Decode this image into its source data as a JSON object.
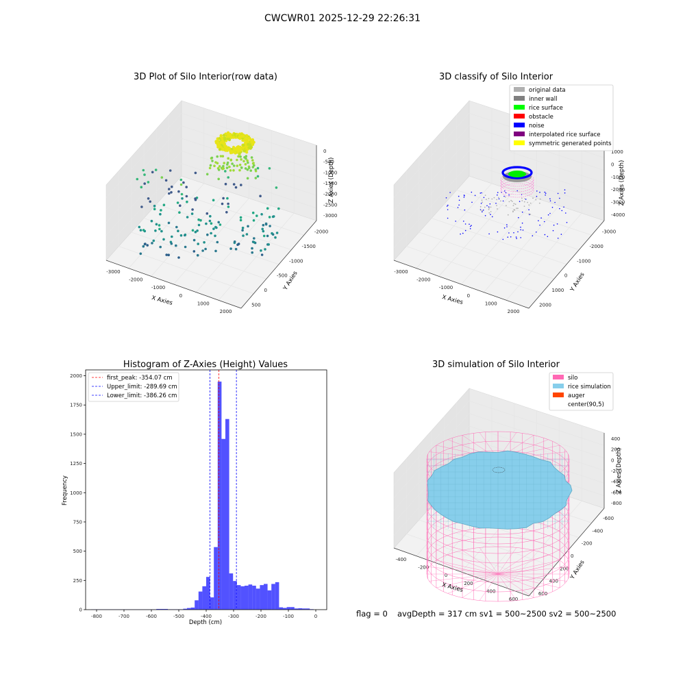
{
  "suptitle": "CWCWR01 2025-12-29 22:26:31",
  "footer": {
    "flag": "flag = 0",
    "avg": "avgDepth = 317 cm  sv1 = 500~2500  sv2 = 500~2500"
  },
  "chart_data": [
    {
      "type": "scatter",
      "title": "3D Plot of Silo Interior(row data)",
      "xlabel": "X Axies",
      "ylabel": "Y Axies",
      "zlabel": "Z Axies (Depth)",
      "x_ticks": [
        "-3000",
        "-2000",
        "-1000",
        "0",
        "1000",
        "2000"
      ],
      "y_ticks": [
        "500",
        "0",
        "-500",
        "-1000",
        "-1500",
        "-2000"
      ],
      "z_ticks": [
        "0",
        "-500",
        "-1000",
        "-1500",
        "-2000",
        "-2500",
        "-3000"
      ],
      "xlim": [
        -3300,
        2800
      ],
      "ylim": [
        -2100,
        900
      ],
      "zlim": [
        -3300,
        200
      ],
      "colormap": "viridis"
    },
    {
      "type": "scatter",
      "title": "3D classify of Silo Interior",
      "xlabel": "X Axies",
      "ylabel": "Y Axies",
      "zlabel": "Z Axies (Depth)",
      "x_ticks": [
        "-3000",
        "-2000",
        "-1000",
        "0",
        "1000",
        "2000"
      ],
      "y_ticks": [
        "2000",
        "1000",
        "0",
        "-1000",
        "-2000",
        "-3000"
      ],
      "z_ticks": [
        "1000",
        "0",
        "-1000",
        "-2000",
        "-3000",
        "-4000"
      ],
      "xlim": [
        -3300,
        2800
      ],
      "ylim": [
        -3300,
        2300
      ],
      "zlim": [
        -4200,
        1200
      ],
      "legend_position": "top-right",
      "legend": [
        {
          "label": "original data",
          "color": "#b0b0b0"
        },
        {
          "label": "inner wall",
          "color": "#808080"
        },
        {
          "label": "rice surface",
          "color": "#00ff00"
        },
        {
          "label": "obstacle",
          "color": "#ff0000"
        },
        {
          "label": "noise",
          "color": "#0000ff"
        },
        {
          "label": "interpolated rice surface",
          "color": "#800080"
        },
        {
          "label": "symmetric generated points",
          "color": "#ffff00"
        }
      ]
    },
    {
      "type": "bar",
      "title": "Histogram of Z-Axies (Height) Values",
      "xlabel": "Depth (cm)",
      "ylabel": "Frequency",
      "xlim": [
        -840,
        40
      ],
      "ylim": [
        0,
        2050
      ],
      "x_ticks": [
        -800,
        -700,
        -600,
        -500,
        -400,
        -300,
        -200,
        -100,
        0
      ],
      "y_ticks": [
        0,
        250,
        500,
        750,
        1000,
        1250,
        1500,
        1750,
        2000
      ],
      "bar_color": "#0000ff",
      "bin_width": 14,
      "bins": [
        [
          -820,
          2
        ],
        [
          -806,
          2
        ],
        [
          -792,
          2
        ],
        [
          -778,
          2
        ],
        [
          -764,
          2
        ],
        [
          -750,
          2
        ],
        [
          -736,
          2
        ],
        [
          -722,
          2
        ],
        [
          -708,
          2
        ],
        [
          -694,
          2
        ],
        [
          -680,
          2
        ],
        [
          -666,
          2
        ],
        [
          -652,
          2
        ],
        [
          -638,
          2
        ],
        [
          -624,
          2
        ],
        [
          -610,
          2
        ],
        [
          -596,
          2
        ],
        [
          -582,
          6
        ],
        [
          -568,
          6
        ],
        [
          -554,
          6
        ],
        [
          -540,
          3
        ],
        [
          -526,
          3
        ],
        [
          -512,
          3
        ],
        [
          -498,
          3
        ],
        [
          -484,
          8
        ],
        [
          -470,
          14
        ],
        [
          -456,
          18
        ],
        [
          -442,
          80
        ],
        [
          -428,
          155
        ],
        [
          -414,
          200
        ],
        [
          -400,
          280
        ],
        [
          -386,
          105
        ],
        [
          -372,
          535
        ],
        [
          -358,
          1950
        ],
        [
          -344,
          1460
        ],
        [
          -330,
          1630
        ],
        [
          -316,
          310
        ],
        [
          -302,
          245
        ],
        [
          -288,
          210
        ],
        [
          -274,
          200
        ],
        [
          -260,
          205
        ],
        [
          -246,
          215
        ],
        [
          -232,
          205
        ],
        [
          -218,
          180
        ],
        [
          -204,
          210
        ],
        [
          -190,
          220
        ],
        [
          -176,
          165
        ],
        [
          -162,
          220
        ],
        [
          -148,
          235
        ],
        [
          -134,
          20
        ],
        [
          -120,
          15
        ],
        [
          -106,
          22
        ],
        [
          -92,
          22
        ],
        [
          -78,
          10
        ],
        [
          -64,
          12
        ],
        [
          -50,
          10
        ],
        [
          -36,
          10
        ],
        [
          -22,
          4
        ]
      ],
      "vlines": [
        {
          "label": "first_peak: -354.07 cm",
          "x": -354.07,
          "color": "#ff0000"
        },
        {
          "label": "Upper_limit: -289.69 cm",
          "x": -289.69,
          "color": "#0000ff"
        },
        {
          "label": "Lower_limit: -386.26 cm",
          "x": -386.26,
          "color": "#0000ff"
        }
      ],
      "legend_position": "top-left"
    },
    {
      "type": "surface",
      "title": "3D simulation of Silo Interior",
      "xlabel": "X Axies",
      "ylabel": "Y Axies",
      "zlabel": "Z Axies (Depth)",
      "x_ticks": [
        "-400",
        "-200",
        "0",
        "200",
        "400",
        "600"
      ],
      "y_ticks": [
        "600",
        "400",
        "200",
        "0",
        "-200",
        "-400",
        "-600"
      ],
      "z_ticks": [
        "400",
        "200",
        "0",
        "-200",
        "-400",
        "-600",
        "-800"
      ],
      "xlim": [
        -500,
        700
      ],
      "ylim": [
        -650,
        650
      ],
      "zlim": [
        -900,
        450
      ],
      "legend_position": "top-right",
      "legend": [
        {
          "label": "silo",
          "color": "#ff69b4"
        },
        {
          "label": "rice simulation",
          "color": "#87ceeb"
        },
        {
          "label": "auger",
          "color": "#ff4500"
        },
        {
          "label": "center(90,5)",
          "color": "#ffffff"
        }
      ]
    }
  ]
}
